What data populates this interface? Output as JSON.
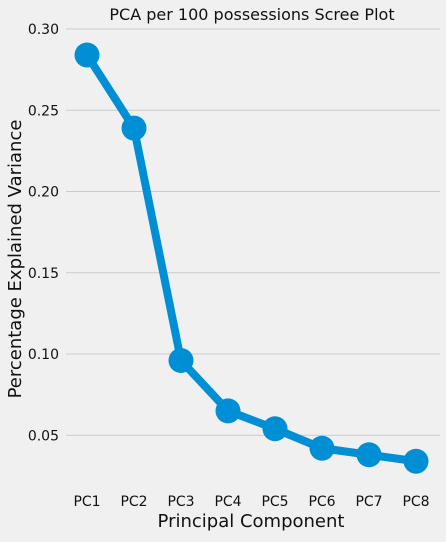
{
  "chart_data": {
    "type": "line",
    "title": "PCA per 100 possessions Scree Plot",
    "xlabel": "Principal Component",
    "ylabel": "Percentage Explained Variance",
    "categories": [
      "PC1",
      "PC2",
      "PC3",
      "PC4",
      "PC5",
      "PC6",
      "PC7",
      "PC8"
    ],
    "values": [
      0.284,
      0.239,
      0.096,
      0.065,
      0.054,
      0.042,
      0.038,
      0.034
    ],
    "ylim": [
      0.02,
      0.3
    ],
    "yticks": [
      "0.05",
      "0.10",
      "0.15",
      "0.20",
      "0.25",
      "0.30"
    ],
    "grid": true,
    "colors": {
      "series": "#008fd5",
      "background": "#f0f0f0",
      "grid": "#cbcbcb"
    }
  }
}
